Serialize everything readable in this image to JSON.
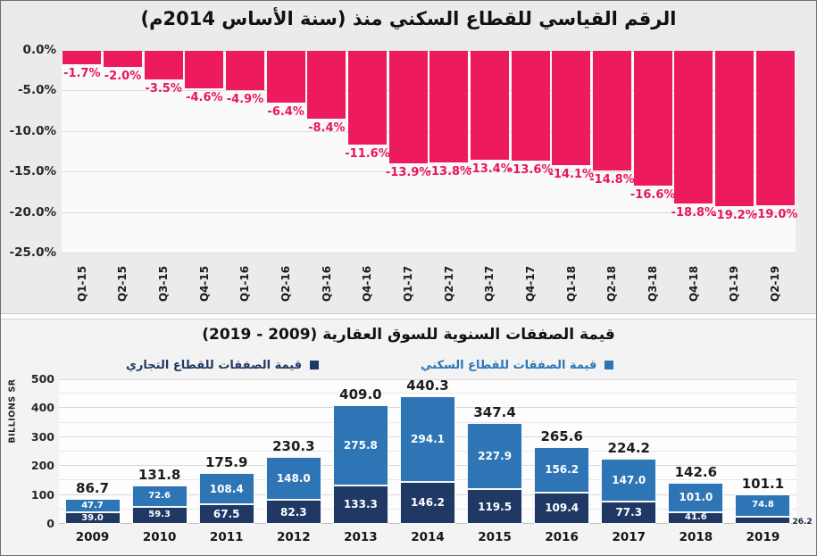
{
  "top_chart": {
    "title": "الرقم القياسي للقطاع السكني منذ (سنة الأساس 2014م)"
  },
  "bottom_chart": {
    "title": "قيمة الصفقات السنوية للسوق العقارية (2009 - 2019)",
    "ylabel": "BILLIONS SR",
    "legend": [
      {
        "label": "قيمة الصفقات للقطاع السكني",
        "color": "#2E75B6"
      },
      {
        "label": "قيمة الصفقات للقطاع التجاري",
        "color": "#1F3864"
      }
    ]
  },
  "chart_data": [
    {
      "type": "bar",
      "title": "الرقم القياسي للقطاع السكني منذ (سنة الأساس 2014م)",
      "categories": [
        "Q1-15",
        "Q2-15",
        "Q3-15",
        "Q4-15",
        "Q1-16",
        "Q2-16",
        "Q3-16",
        "Q4-16",
        "Q1-17",
        "Q2-17",
        "Q3-17",
        "Q4-17",
        "Q1-18",
        "Q2-18",
        "Q3-18",
        "Q4-18",
        "Q1-19",
        "Q2-19"
      ],
      "values": [
        -1.7,
        -2.0,
        -3.5,
        -4.6,
        -4.9,
        -6.4,
        -8.4,
        -11.6,
        -13.9,
        -13.8,
        -13.4,
        -13.6,
        -14.1,
        -14.8,
        -16.6,
        -18.8,
        -19.2,
        -19.0
      ],
      "data_labels": [
        "-1.7%",
        "-2.0%",
        "-3.5%",
        "-4.6%",
        "-4.9%",
        "-6.4%",
        "-8.4%",
        "-11.6%",
        "-13.9%",
        "-13.8%",
        "-13.4%",
        "-13.6%",
        "-14.1%",
        "-14.8%",
        "-16.6%",
        "-18.8%",
        "-19.2%",
        "-19.0%"
      ],
      "bar_color": "#ED1A5E",
      "label_color": "#E8155A",
      "ylim": [
        -25,
        0
      ],
      "yticks": [
        0,
        -5,
        -10,
        -15,
        -20,
        -25
      ],
      "ytick_labels": [
        "0.0%",
        "-5.0%",
        "-10.0%",
        "-15.0%",
        "-20.0%",
        "-25.0%"
      ],
      "grid": true,
      "legend_position": "none"
    },
    {
      "type": "bar",
      "stacked": true,
      "title": "قيمة الصفقات السنوية للسوق العقارية (2009 - 2019)",
      "categories": [
        "2009",
        "2010",
        "2011",
        "2012",
        "2013",
        "2014",
        "2015",
        "2016",
        "2017",
        "2018",
        "2019"
      ],
      "series": [
        {
          "name": "قيمة الصفقات للقطاع التجاري",
          "color": "#1F3864",
          "values": [
            39.0,
            59.3,
            67.5,
            82.3,
            133.3,
            146.2,
            119.5,
            109.4,
            77.3,
            41.6,
            26.2
          ]
        },
        {
          "name": "قيمة الصفقات للقطاع السكني",
          "color": "#2E75B6",
          "values": [
            47.7,
            72.6,
            108.4,
            148.0,
            275.8,
            294.1,
            227.9,
            156.2,
            147.0,
            101.0,
            74.8
          ]
        }
      ],
      "totals": [
        86.7,
        131.8,
        175.9,
        230.3,
        409.0,
        440.3,
        347.4,
        265.6,
        224.2,
        142.6,
        101.1
      ],
      "ylabel": "BILLIONS SR",
      "ylim": [
        0,
        500
      ],
      "yticks": [
        0,
        100,
        200,
        300,
        400,
        500
      ],
      "minor_grid_step": 50,
      "grid": true,
      "legend_position": "top"
    }
  ]
}
